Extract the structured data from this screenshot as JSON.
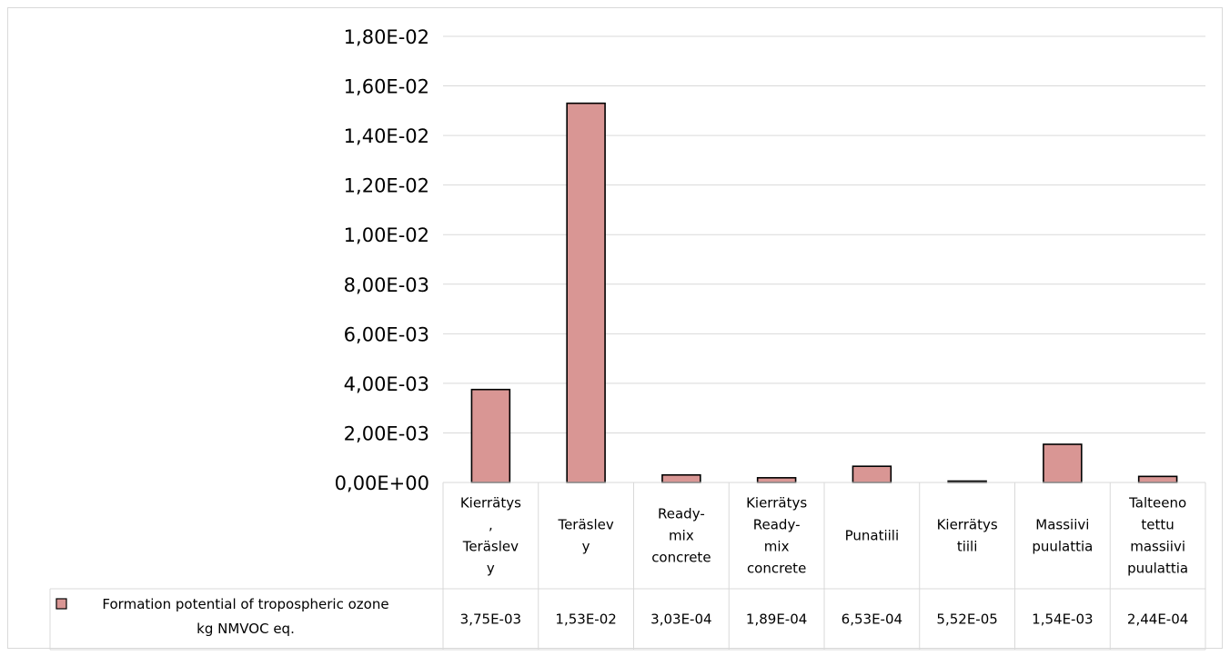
{
  "chart_data": {
    "type": "bar",
    "categories": [
      [
        "Kierrätys",
        ",",
        "Teräslev",
        "y"
      ],
      [
        "Teräslev",
        "y"
      ],
      [
        "Ready-",
        "mix",
        "concrete"
      ],
      [
        "Kierrätys",
        "Ready-",
        "mix",
        "concrete"
      ],
      [
        "Punatiili"
      ],
      [
        "Kierrätys",
        "tiili"
      ],
      [
        "Massiivi",
        "puulattia"
      ],
      [
        "Talteeno",
        "tettu",
        "massiivi",
        "puulattia"
      ]
    ],
    "series": [
      {
        "name_lines": [
          "Formation potential of tropospheric ozone",
          "kg NMVOC eq."
        ],
        "values": [
          0.00375,
          0.0153,
          0.000303,
          0.000189,
          0.000653,
          5.52e-05,
          0.00154,
          0.000244
        ],
        "value_labels": [
          "3,75E-03",
          "1,53E-02",
          "3,03E-04",
          "1,89E-04",
          "6,53E-04",
          "5,52E-05",
          "1,54E-03",
          "2,44E-04"
        ],
        "color": "#d99694"
      }
    ],
    "ylim": [
      0,
      0.018
    ],
    "yticks": [
      0,
      0.002,
      0.004,
      0.006,
      0.008,
      0.01,
      0.012,
      0.014,
      0.016,
      0.018
    ],
    "ytick_labels": [
      "0,00E+00",
      "2,00E-03",
      "4,00E-03",
      "6,00E-03",
      "8,00E-03",
      "1,00E-02",
      "1,20E-02",
      "1,40E-02",
      "1,60E-02",
      "1,80E-02"
    ],
    "grid": true,
    "legend": "data-table",
    "title": "",
    "xlabel": "",
    "ylabel": ""
  }
}
